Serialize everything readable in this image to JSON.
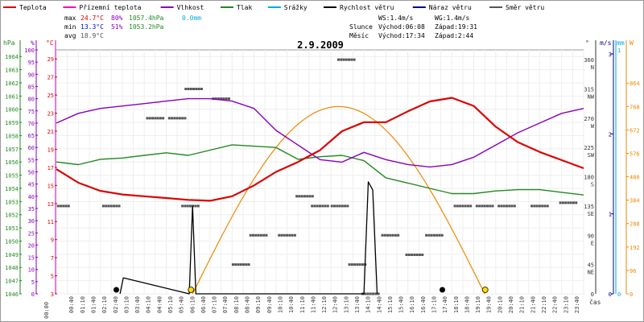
{
  "chart_data": {
    "type": "line",
    "title": "2.9.2009",
    "x_axis_label": "čas",
    "x_ticks": [
      "00:40",
      "01:10",
      "01:40",
      "02:10",
      "02:40",
      "03:10",
      "03:40",
      "04:10",
      "04:40",
      "05:10",
      "05:40",
      "06:10",
      "06:40",
      "07:10",
      "07:40",
      "08:10",
      "08:40",
      "09:10",
      "09:40",
      "10:10",
      "10:40",
      "11:10",
      "11:40",
      "12:10",
      "12:40",
      "13:10",
      "13:40",
      "14:10",
      "14:40",
      "15:10",
      "15:40",
      "16:10",
      "16:40",
      "17:10",
      "17:40",
      "18:10",
      "18:40",
      "19:10",
      "19:40",
      "20:10",
      "20:40",
      "21:10",
      "21:40",
      "22:10",
      "22:40",
      "23:10",
      "23:40"
    ],
    "legend": [
      {
        "name": "Teplota",
        "color": "#dd0000"
      },
      {
        "name": "Přízemní teplota",
        "color": "#ff00aa"
      },
      {
        "name": "Vlhkost",
        "color": "#8800bb"
      },
      {
        "name": "Tlak",
        "color": "#228822"
      },
      {
        "name": "Srážky",
        "color": "#00aadd"
      },
      {
        "name": "Rychlost větru",
        "color": "#000000"
      },
      {
        "name": "Náraz větru",
        "color": "#000088"
      },
      {
        "name": "Směr větru",
        "color": "#555555"
      }
    ],
    "stats": {
      "max": {
        "label": "max",
        "temp": "24.7°C",
        "hum": "80%",
        "press": "1057.4hPa",
        "rain": "0.0mm"
      },
      "min": {
        "label": "min",
        "temp": "13.3°C",
        "hum": "51%",
        "press": "1053.2hPa"
      },
      "avg": {
        "label": "avg",
        "temp": "18.9°C"
      },
      "ws": "WS:1.4m/s",
      "wg": "WG:1.4m/s",
      "sun": {
        "label": "Slunce",
        "rise": "Východ:06:08",
        "set": "Západ:19:31"
      },
      "moon": {
        "label": "Měsíc",
        "rise": "Východ:17:34",
        "set": "Západ:2:44"
      }
    },
    "axes": {
      "hpa": {
        "unit": "hPa",
        "ticks": [
          "1046",
          "1047",
          "1048",
          "1049",
          "1050",
          "1051",
          "1052",
          "1053",
          "1054",
          "1055",
          "1056",
          "1057",
          "1058",
          "1059",
          "1060",
          "1061",
          "1062",
          "1063",
          "1064"
        ],
        "range": [
          1046,
          1064.5
        ]
      },
      "pct": {
        "unit": "%",
        "ticks": [
          "0",
          "5",
          "10",
          "15",
          "20",
          "25",
          "30",
          "35",
          "40",
          "45",
          "50",
          "55",
          "60",
          "65",
          "70",
          "75",
          "80",
          "85",
          "90",
          "95",
          "100"
        ],
        "range": [
          0,
          100
        ]
      },
      "c": {
        "unit": "°C",
        "ticks": [
          "3",
          "5",
          "7",
          "9",
          "11",
          "13",
          "15",
          "17",
          "19",
          "21",
          "23",
          "25",
          "27",
          "29"
        ],
        "range": [
          3,
          30
        ]
      },
      "deg": {
        "unit": "°",
        "ticks": [
          "0",
          "45",
          "90",
          "135",
          "180",
          "225",
          "270",
          "315",
          "360"
        ],
        "dirs": [
          "",
          "NE",
          "E",
          "SE",
          "S",
          "SW",
          "W",
          "NW",
          "N"
        ]
      },
      "ms": {
        "unit": "m/s",
        "ticks": [
          "0",
          "1",
          "2",
          "3"
        ]
      },
      "mm": {
        "unit": "mm",
        "ticks": [
          "0",
          "1"
        ]
      },
      "w": {
        "unit": "W",
        "ticks": [
          "0",
          "96",
          "192",
          "288",
          "384",
          "480",
          "576",
          "672",
          "768",
          "864"
        ]
      }
    },
    "series": [
      {
        "name": "Teplota",
        "unit": "°C",
        "x": [
          0,
          1,
          2,
          3,
          4,
          5,
          6,
          7,
          8,
          9,
          10,
          11,
          12,
          13,
          14,
          15,
          16,
          17,
          18,
          19,
          20,
          21,
          22,
          23,
          24
        ],
        "values": [
          16.8,
          15.3,
          14.4,
          14.0,
          13.8,
          13.6,
          13.4,
          13.3,
          13.8,
          15.0,
          16.5,
          17.6,
          18.9,
          21.0,
          22.0,
          22.0,
          23.2,
          24.3,
          24.7,
          23.8,
          21.5,
          19.8,
          18.7,
          17.8,
          16.9
        ]
      },
      {
        "name": "Vlhkost",
        "unit": "%",
        "x": [
          0,
          1,
          2,
          3,
          4,
          5,
          6,
          7,
          8,
          9,
          10,
          11,
          12,
          13,
          14,
          15,
          16,
          17,
          18,
          19,
          20,
          21,
          22,
          23,
          24
        ],
        "values": [
          70,
          74,
          76,
          77,
          78,
          79,
          80,
          80,
          79,
          76,
          67,
          61,
          55,
          54,
          58,
          55,
          53,
          52,
          53,
          56,
          61,
          66,
          70,
          74,
          76
        ]
      },
      {
        "name": "Tlak",
        "unit": "hPa",
        "x": [
          0,
          1,
          2,
          3,
          4,
          5,
          6,
          7,
          8,
          9,
          10,
          11,
          12,
          13,
          14,
          15,
          16,
          17,
          18,
          19,
          20,
          21,
          22,
          23,
          24
        ],
        "values": [
          1056.0,
          1055.8,
          1056.2,
          1056.3,
          1056.5,
          1056.7,
          1056.5,
          1056.9,
          1057.3,
          1057.2,
          1057.1,
          1056.2,
          1056.4,
          1056.5,
          1056.1,
          1054.8,
          1054.4,
          1054.0,
          1053.6,
          1053.6,
          1053.8,
          1053.9,
          1053.9,
          1053.7,
          1053.5
        ]
      },
      {
        "name": "Rychlost větru",
        "unit": "m/s",
        "x": [
          2.9,
          3.05,
          6.05,
          6.2,
          6.35,
          14.0,
          14.2,
          14.4,
          14.6
        ],
        "values": [
          0,
          0.2,
          0,
          1.1,
          0,
          0,
          1.4,
          1.3,
          0
        ]
      },
      {
        "name": "Sluneční záření",
        "unit": "W",
        "x": [
          6.2,
          8,
          10,
          12,
          13.2,
          14,
          16,
          18,
          19.5
        ],
        "values": [
          0,
          260,
          620,
          750,
          768,
          760,
          620,
          260,
          0
        ]
      }
    ],
    "direction_points": {
      "unit": "°",
      "x": [
        0.2,
        2.5,
        4.5,
        5.5,
        6.1,
        6.25,
        7.5,
        8.4,
        9.2,
        10.5,
        11.3,
        12,
        12.9,
        13.2,
        13.7,
        14.3,
        15.2,
        16.3,
        17.2,
        18.5,
        19.5,
        20.5,
        22,
        23.3
      ],
      "values": [
        135,
        135,
        270,
        270,
        135,
        315,
        300,
        45,
        90,
        90,
        150,
        135,
        135,
        360,
        45,
        0,
        90,
        60,
        90,
        135,
        135,
        135,
        135,
        140
      ]
    },
    "icons": {
      "sun_color": "#ffdd00",
      "moon_color": "#000000"
    }
  }
}
